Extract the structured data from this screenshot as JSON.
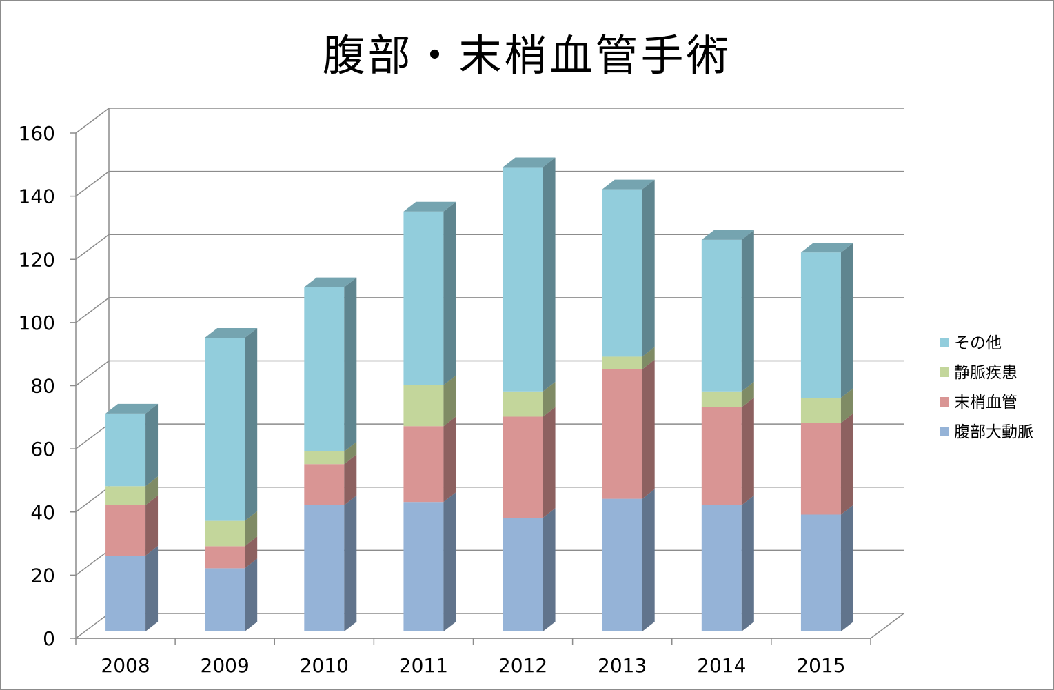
{
  "chart_data": {
    "type": "bar",
    "stacked": true,
    "three_d": true,
    "title": "腹部・末梢血管手術",
    "categories": [
      "2008",
      "2009",
      "2010",
      "2011",
      "2012",
      "2013",
      "2014",
      "2015"
    ],
    "series": [
      {
        "name": "腹部大動脈",
        "values": [
          24,
          20,
          40,
          41,
          36,
          42,
          40,
          37
        ],
        "color": "#95b3d7"
      },
      {
        "name": "末梢血管",
        "values": [
          16,
          7,
          13,
          24,
          32,
          41,
          31,
          29
        ],
        "color": "#d99594"
      },
      {
        "name": "静脈疾患",
        "values": [
          6,
          8,
          4,
          13,
          8,
          4,
          5,
          8
        ],
        "color": "#c3d69b"
      },
      {
        "name": "その他",
        "values": [
          23,
          58,
          52,
          55,
          71,
          53,
          48,
          46
        ],
        "color": "#92cddc"
      }
    ],
    "y_ticks": [
      "0",
      "20",
      "40",
      "60",
      "80",
      "100",
      "120",
      "140",
      "160"
    ],
    "ylim": [
      0,
      160
    ],
    "grid": true,
    "legend_position": "right"
  }
}
